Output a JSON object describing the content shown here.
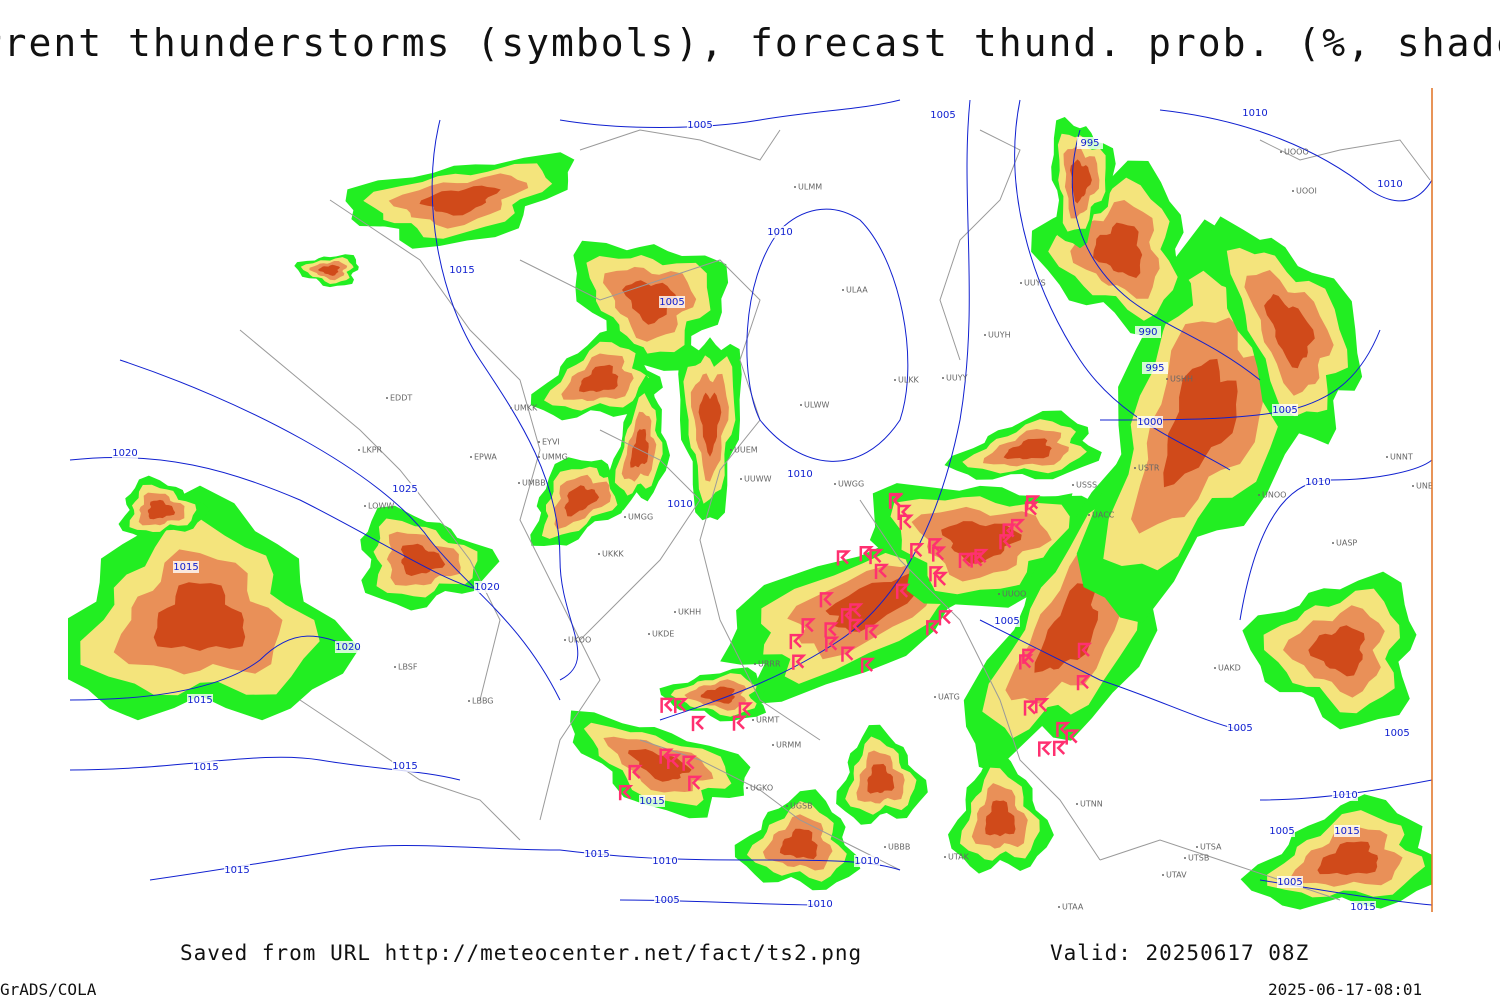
{
  "header": {
    "title": "Current thunderstorms (symbols), forecast thund. prob. (%, shaded)"
  },
  "map": {
    "isobar_labels": [
      "1005",
      "1005",
      "1010",
      "995",
      "1010",
      "1010",
      "1015",
      "1005",
      "990",
      "995",
      "1005",
      "1000",
      "1010",
      "1020",
      "1025",
      "1010",
      "1010",
      "1015",
      "1020",
      "1020",
      "1005",
      "1015",
      "1005",
      "1005",
      "1015",
      "1015",
      "1015",
      "1010",
      "1015",
      "1005",
      "1015",
      "1010",
      "1010",
      "1015",
      "1005",
      "1005",
      "1010",
      "1015"
    ],
    "stations": [
      "UUYS",
      "ULAA",
      "UUYH",
      "ULKK",
      "UUYY",
      "ULWW",
      "EDDT",
      "UMKK",
      "EYVI",
      "LKPR",
      "EPWA",
      "UMMG",
      "UUEM",
      "UMBB",
      "UUWW",
      "UWGG",
      "USSS",
      "USTR",
      "UNOO",
      "UNNT",
      "UNBB",
      "LOWW",
      "UMGG",
      "UKKK",
      "UUOO",
      "UKHH",
      "UKOO",
      "UKDE",
      "LBSF",
      "URRR",
      "UATG",
      "LBBG",
      "URMT",
      "URMM",
      "UTNN",
      "UTAK",
      "UTSA",
      "UTSB",
      "UTAV",
      "UTAA",
      "UBBB",
      "UGSB",
      "UGKO",
      "UOOI",
      "UOOO",
      "UASP",
      "UAKD",
      "UACC",
      "USHH",
      "ULMM"
    ]
  },
  "footer": {
    "source": "Saved from URL http://meteocenter.net/fact/ts2.png",
    "valid": "Valid: 20250617 08Z",
    "software": "GrADS/COLA",
    "timestamp": "2025-06-17-08:01"
  }
}
